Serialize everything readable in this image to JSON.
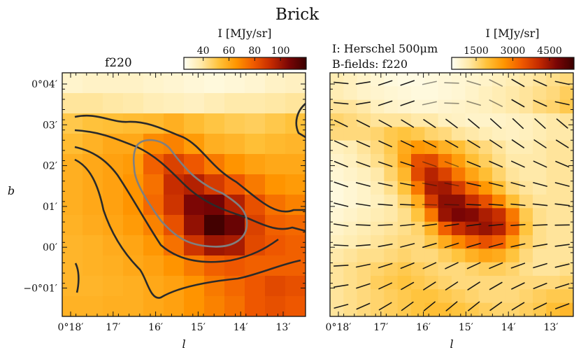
{
  "title": "Brick",
  "colors": {
    "cmap": [
      "#fffff2",
      "#ffe9a8",
      "#ffc23a",
      "#ff9500",
      "#f05a00",
      "#c42a00",
      "#7a0505",
      "#3a0000"
    ],
    "contour_dark": "#2a2a2a",
    "contour_light": "#808080",
    "frame": "#111111",
    "vector": "#111111"
  },
  "chart_data": [
    {
      "type": "heatmap",
      "panel_label": "f220",
      "colorbar": {
        "label": "I [MJy/sr]",
        "ticks": [
          "40",
          "60",
          "80",
          "100"
        ],
        "range": [
          25,
          120
        ]
      },
      "xlabel": "l",
      "ylabel": "b",
      "xticks": [
        "0°18′",
        "17′",
        "16′",
        "15′",
        "14′",
        "13′"
      ],
      "yticks": [
        "0°04′",
        "03′",
        "02′",
        "01′",
        "00′",
        "−0°01′"
      ],
      "grid": {
        "columns": 12,
        "rows": 12,
        "values": [
          [
            32,
            33,
            33,
            33,
            32,
            31,
            30,
            29,
            30,
            31,
            33,
            34
          ],
          [
            40,
            40,
            39,
            38,
            36,
            35,
            34,
            36,
            38,
            38,
            39,
            40
          ],
          [
            50,
            52,
            53,
            54,
            55,
            58,
            54,
            51,
            49,
            48,
            50,
            52
          ],
          [
            54,
            57,
            60,
            60,
            68,
            70,
            64,
            58,
            56,
            53,
            55,
            56
          ],
          [
            58,
            60,
            62,
            64,
            78,
            86,
            80,
            72,
            66,
            62,
            60,
            60
          ],
          [
            58,
            60,
            62,
            66,
            74,
            92,
            96,
            88,
            80,
            72,
            66,
            64
          ],
          [
            58,
            60,
            62,
            66,
            76,
            90,
            106,
            108,
            96,
            82,
            74,
            70
          ],
          [
            57,
            59,
            61,
            64,
            70,
            82,
            102,
            118,
            110,
            86,
            78,
            76
          ],
          [
            56,
            57,
            59,
            61,
            65,
            74,
            90,
            100,
            98,
            84,
            80,
            78
          ],
          [
            56,
            57,
            58,
            60,
            62,
            66,
            72,
            78,
            80,
            78,
            78,
            78
          ],
          [
            56,
            56,
            57,
            58,
            60,
            62,
            66,
            72,
            76,
            80,
            84,
            82
          ],
          [
            57,
            57,
            58,
            58,
            60,
            62,
            66,
            70,
            74,
            80,
            82,
            80
          ]
        ]
      }
    },
    {
      "type": "heatmap",
      "panel_label": "I: Herschel 500μm",
      "panel_label_2": "B-fields: f220",
      "colorbar": {
        "label": "I [MJy/sr]",
        "ticks": [
          "1500",
          "3000",
          "4500"
        ],
        "range": [
          500,
          5500
        ]
      },
      "xlabel": "l",
      "xticks": [
        "0°18′",
        "17′",
        "16′",
        "15′",
        "14′",
        "13′"
      ],
      "grid": {
        "columns": 18,
        "rows": 18,
        "values": [
          [
            1100,
            1000,
            900,
            800,
            700,
            650,
            650,
            700,
            750,
            800,
            850,
            900,
            1000,
            1100,
            1200,
            1300,
            1400,
            1500
          ],
          [
            1100,
            1000,
            900,
            850,
            800,
            750,
            700,
            700,
            750,
            800,
            900,
            1000,
            1100,
            1200,
            1300,
            1400,
            1500,
            1700
          ],
          [
            1300,
            1300,
            1200,
            1000,
            900,
            850,
            800,
            800,
            850,
            900,
            950,
            1000,
            1100,
            1200,
            1300,
            1500,
            1600,
            1800
          ],
          [
            1600,
            1500,
            1400,
            1300,
            1300,
            1300,
            1200,
            1200,
            1000,
            950,
            900,
            900,
            900,
            950,
            1000,
            1100,
            1200,
            1300
          ],
          [
            1500,
            1500,
            1500,
            1600,
            1800,
            1900,
            1800,
            1600,
            1500,
            1300,
            1200,
            1100,
            1000,
            950,
            1000,
            1100,
            1200,
            1200
          ],
          [
            1000,
            1100,
            1300,
            1500,
            1800,
            2300,
            2600,
            2500,
            2200,
            2000,
            1700,
            1500,
            1300,
            1100,
            1100,
            1200,
            1300,
            1300
          ],
          [
            900,
            1000,
            1200,
            1400,
            1700,
            2400,
            3500,
            3600,
            3000,
            2500,
            2000,
            1700,
            1400,
            1200,
            1200,
            1200,
            1300,
            1300
          ],
          [
            800,
            900,
            1000,
            1200,
            1600,
            2100,
            3600,
            4200,
            3700,
            3000,
            2400,
            2000,
            1600,
            1300,
            1200,
            1200,
            1300,
            1300
          ],
          [
            700,
            800,
            900,
            1100,
            1400,
            1900,
            3000,
            4300,
            4400,
            3800,
            3100,
            2600,
            2000,
            1500,
            1300,
            1200,
            1300,
            1300
          ],
          [
            700,
            800,
            900,
            1000,
            1200,
            1600,
            2300,
            3800,
            4600,
            4600,
            4000,
            3500,
            2800,
            2000,
            1500,
            1300,
            1300,
            1300
          ],
          [
            800,
            900,
            1000,
            1100,
            1200,
            1400,
            1900,
            3000,
            4500,
            4800,
            4700,
            4300,
            4000,
            3000,
            1800,
            1400,
            1300,
            1300
          ],
          [
            900,
            1000,
            1100,
            1200,
            1300,
            1400,
            1600,
            2200,
            3300,
            4000,
            4300,
            4500,
            4200,
            3200,
            1900,
            1400,
            1300,
            1300
          ],
          [
            1000,
            1100,
            1200,
            1300,
            1400,
            1500,
            1500,
            1800,
            2300,
            2800,
            3200,
            3500,
            3300,
            2500,
            1700,
            1400,
            1300,
            1300
          ],
          [
            1200,
            1300,
            1400,
            1400,
            1500,
            1600,
            1500,
            1500,
            1700,
            1900,
            2200,
            2400,
            2300,
            1900,
            1500,
            1300,
            1300,
            1300
          ],
          [
            1300,
            1400,
            1500,
            1600,
            1700,
            1800,
            1700,
            1600,
            1500,
            1500,
            1600,
            1700,
            1700,
            1600,
            1400,
            1300,
            1300,
            1400
          ],
          [
            1300,
            1400,
            1500,
            1700,
            1800,
            1900,
            1800,
            1700,
            1600,
            1500,
            1500,
            1500,
            1500,
            1500,
            1500,
            1500,
            1500,
            1600
          ],
          [
            1300,
            1400,
            1500,
            1600,
            1700,
            1800,
            1900,
            1900,
            1800,
            1700,
            1600,
            1500,
            1500,
            1500,
            1600,
            1700,
            1800,
            1800
          ],
          [
            1300,
            1400,
            1500,
            1600,
            1700,
            1800,
            1900,
            2000,
            2000,
            1900,
            1800,
            1700,
            1600,
            1600,
            1700,
            1800,
            2000,
            2100
          ]
        ]
      }
    }
  ]
}
